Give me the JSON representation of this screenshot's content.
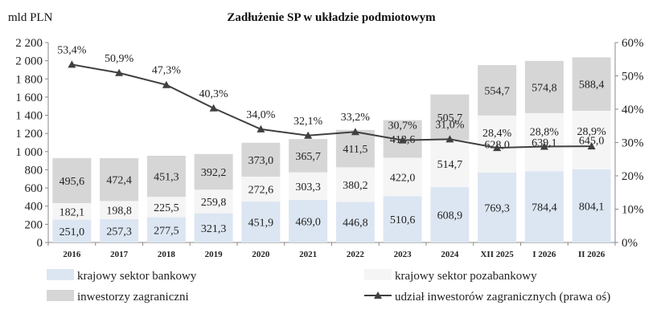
{
  "chart_data": {
    "type": "bar",
    "stacked": true,
    "title": "Zadłużenie SP w układzie podmiotowym",
    "ylabel": "mld PLN",
    "ylim": [
      0,
      2200
    ],
    "yticks": [
      "0",
      "200",
      "400",
      "600",
      "800",
      "1 000",
      "1 200",
      "1 400",
      "1 600",
      "1 800",
      "2 000",
      "2 200"
    ],
    "y2lim": [
      0,
      60
    ],
    "y2ticks": [
      "0%",
      "10%",
      "20%",
      "30%",
      "40%",
      "50%",
      "60%"
    ],
    "categories": [
      "2016",
      "2017",
      "2018",
      "2019",
      "2020",
      "2021",
      "2022",
      "2023",
      "2024",
      "XII 2025",
      "I 2026",
      "II 2026"
    ],
    "series": [
      {
        "name": "krajowy sektor bankowy",
        "color": "#dce6f2",
        "values": [
          251.0,
          257.3,
          277.5,
          321.3,
          451.9,
          469.0,
          446.8,
          510.6,
          608.9,
          769.3,
          784.4,
          804.1
        ],
        "labels": [
          "251,0",
          "257,3",
          "277,5",
          "321,3",
          "451,9",
          "469,0",
          "446,8",
          "510,6",
          "608,9",
          "769,3",
          "784,4",
          "804,1"
        ]
      },
      {
        "name": "krajowy sektor pozabankowy",
        "color": "#f5f5f5",
        "values": [
          182.1,
          198.8,
          225.5,
          259.8,
          272.6,
          303.3,
          380.2,
          422.0,
          514.7,
          628.0,
          639.1,
          645.0
        ],
        "labels": [
          "182,1",
          "198,8",
          "225,5",
          "259,8",
          "272,6",
          "303,3",
          "380,2",
          "422,0",
          "514,7",
          "628,0",
          "639,1",
          "645,0"
        ]
      },
      {
        "name": "inwestorzy zagraniczni",
        "color": "#d6d6d6",
        "values": [
          495.6,
          472.4,
          451.3,
          392.2,
          373.0,
          365.7,
          411.5,
          413.6,
          505.7,
          554.7,
          574.8,
          588.4
        ],
        "labels": [
          "495,6",
          "472,4",
          "451,3",
          "392,2",
          "373,0",
          "365,7",
          "411,5",
          "413,6",
          "505,7",
          "554,7",
          "574,8",
          "588,4"
        ]
      },
      {
        "name": "udział inwestorów zagranicznych (prawa oś)",
        "type": "line",
        "axis": "right",
        "color": "#404040",
        "values": [
          53.4,
          50.9,
          47.3,
          40.3,
          34.0,
          32.1,
          33.2,
          30.7,
          31.0,
          28.4,
          28.8,
          28.9
        ],
        "labels": [
          "53,4%",
          "50,9%",
          "47,3%",
          "40,3%",
          "34,0%",
          "32,1%",
          "33,2%",
          "30,7%",
          "31,0%",
          "28,4%",
          "28,8%",
          "28,9%"
        ]
      }
    ],
    "legend": "bottom",
    "grid": false
  }
}
